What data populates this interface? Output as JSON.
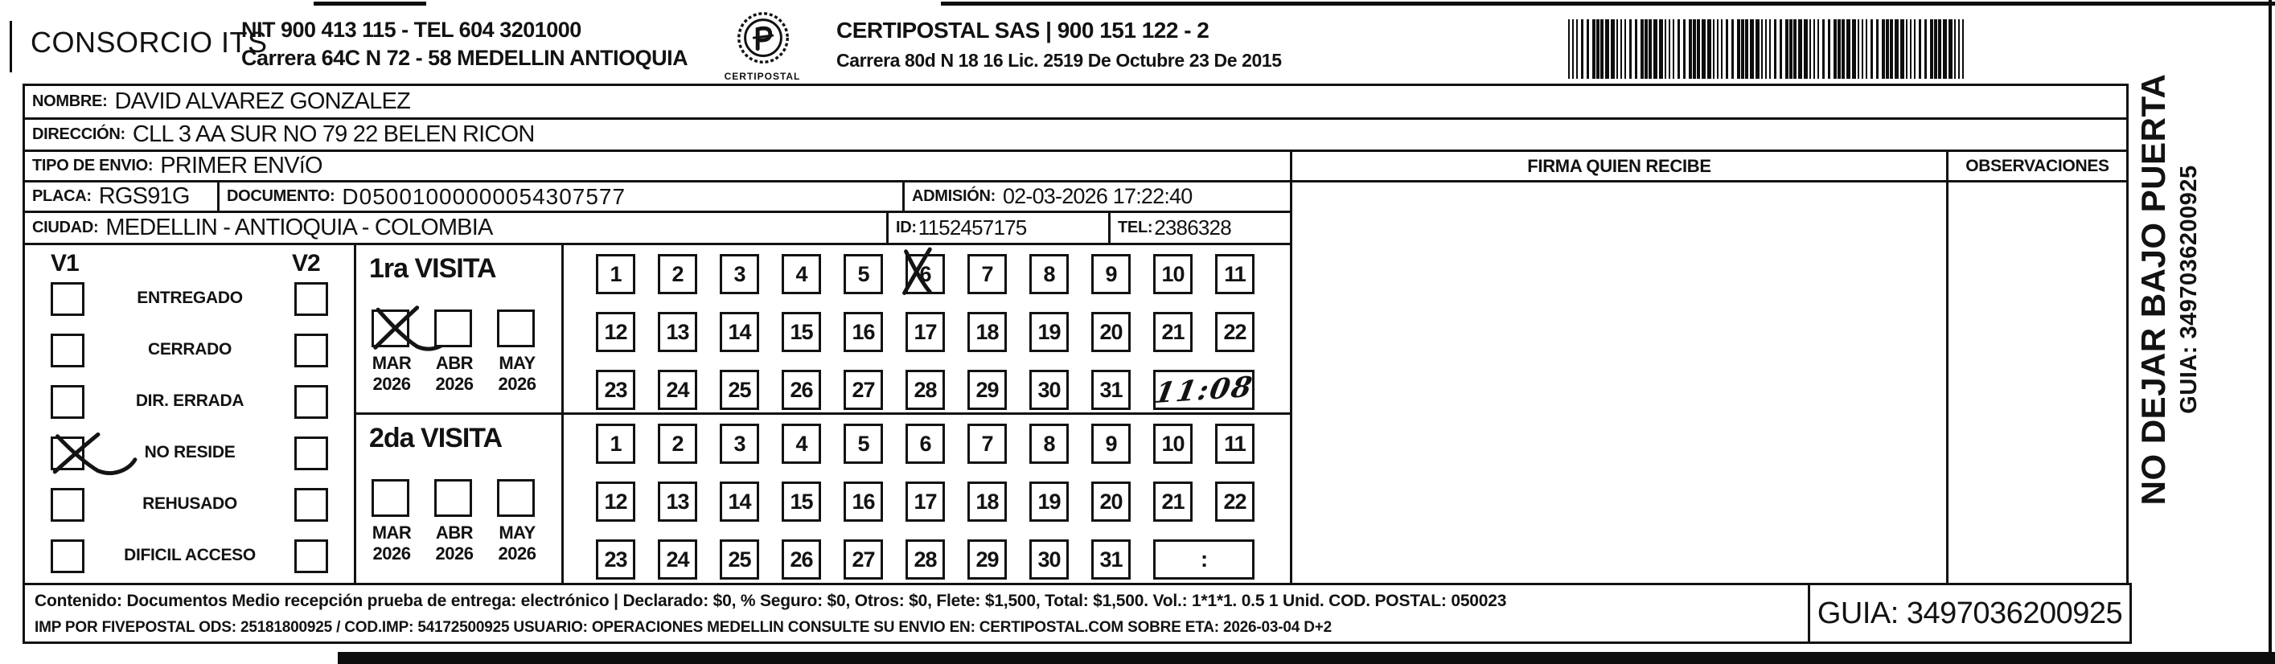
{
  "header": {
    "company_name": "CONSORCIO ITS",
    "nit_line": "NIT 900 413 115 - TEL 604 3201000",
    "address_line": "Carrera 64C N 72 - 58 MEDELLIN ANTIOQUIA",
    "logo_caption": "CERTIPOSTAL",
    "postal_name_line": "CERTIPOSTAL SAS | 900 151 122 - 2",
    "postal_address_line": "Carrera 80d N 18 16  Lic. 2519 De Octubre 23 De 2015"
  },
  "shipment": {
    "nombre_label": "NOMBRE:",
    "nombre": "DAVID ALVAREZ GONZALEZ",
    "direccion_label": "DIRECCIÓN:",
    "direccion": "CLL 3 AA SUR NO 79 22 BELEN RICON",
    "tipo_envio_label": "TIPO DE ENVIO:",
    "tipo_envio": "PRIMER ENVíO",
    "placa_label": "PLACA:",
    "placa": "RGS91G",
    "documento_label": "DOCUMENTO:",
    "documento": "D05001000000054307577",
    "admision_label": "ADMISIÓN:",
    "admision": "02-03-2026 17:22:40",
    "ciudad_label": "CIUDAD:",
    "ciudad": "MEDELLIN - ANTIOQUIA - COLOMBIA",
    "id_label": "ID:",
    "id_value": "1152457175",
    "tel_label": "TEL:",
    "tel_value": "2386328"
  },
  "columns": {
    "firma_header": "FIRMA QUIEN RECIBE",
    "observaciones_header": "OBSERVACIONES"
  },
  "status_panel": {
    "v1_label": "V1",
    "v2_label": "V2",
    "options": [
      {
        "label": "ENTREGADO",
        "v1_checked": false,
        "v2_checked": false
      },
      {
        "label": "CERRADO",
        "v1_checked": false,
        "v2_checked": false
      },
      {
        "label": "DIR. ERRADA",
        "v1_checked": false,
        "v2_checked": false
      },
      {
        "label": "NO RESIDE",
        "v1_checked": true,
        "v2_checked": false
      },
      {
        "label": "REHUSADO",
        "v1_checked": false,
        "v2_checked": false
      },
      {
        "label": "DIFICIL ACCESO",
        "v1_checked": false,
        "v2_checked": false
      }
    ]
  },
  "visits": [
    {
      "title": "1ra VISITA",
      "months": [
        {
          "label": "MAR",
          "year": "2026",
          "checked": true
        },
        {
          "label": "ABR",
          "year": "2026",
          "checked": false
        },
        {
          "label": "MAY",
          "year": "2026",
          "checked": false
        }
      ],
      "days": [
        1,
        2,
        3,
        4,
        5,
        6,
        7,
        8,
        9,
        10,
        11,
        12,
        13,
        14,
        15,
        16,
        17,
        18,
        19,
        20,
        21,
        22,
        23,
        24,
        25,
        26,
        27,
        28,
        29,
        30,
        31
      ],
      "marked_day": 6,
      "time_value": "11:08",
      "time_handwritten": true
    },
    {
      "title": "2da VISITA",
      "months": [
        {
          "label": "MAR",
          "year": "2026",
          "checked": false
        },
        {
          "label": "ABR",
          "year": "2026",
          "checked": false
        },
        {
          "label": "MAY",
          "year": "2026",
          "checked": false
        }
      ],
      "days": [
        1,
        2,
        3,
        4,
        5,
        6,
        7,
        8,
        9,
        10,
        11,
        12,
        13,
        14,
        15,
        16,
        17,
        18,
        19,
        20,
        21,
        22,
        23,
        24,
        25,
        26,
        27,
        28,
        29,
        30,
        31
      ],
      "marked_day": null,
      "time_value": ":",
      "time_handwritten": false
    }
  ],
  "side_strip": {
    "warning": "NO DEJAR BAJO PUERTA",
    "guia": "GUIA: 3497036200925"
  },
  "footer": {
    "content_line": "Contenido: Documentos Medio recepción prueba de entrega: electrónico | Declarado: $0, % Seguro: $0, Otros: $0, Flete: $1,500, Total: $1,500. Vol.: 1*1*1. 0.5  1 Unid. COD. POSTAL: 050023",
    "imp_line": "IMP POR FIVEPOSTAL ODS: 25181800925 / COD.IMP: 54172500925 USUARIO: OPERACIONES MEDELLIN CONSULTE SU ENVIO EN: CERTIPOSTAL.COM SOBRE ETA: 2026-03-04 D+2",
    "guia_label": "GUIA: 3497036200925"
  }
}
